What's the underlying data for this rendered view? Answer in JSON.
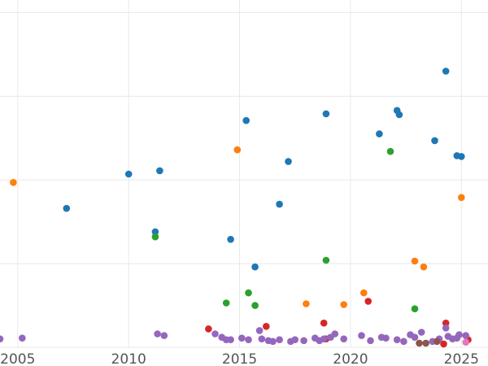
{
  "chart_data": {
    "type": "scatter",
    "title": "",
    "xlabel": "",
    "ylabel": "",
    "grid": true,
    "legend": "none",
    "xlim": [
      2004.2,
      2026.2
    ],
    "ylim": [
      0,
      4.15
    ],
    "xticks": [
      2005,
      2010,
      2015,
      2020,
      2025
    ],
    "xtick_labels": [
      "2005",
      "2010",
      "2015",
      "2020",
      "2025"
    ],
    "yticks": [
      0,
      1,
      2,
      3,
      4
    ],
    "ytick_labels": [],
    "series": [
      {
        "color": "#1f77b4",
        "points": [
          [
            2007.2,
            1.66
          ],
          [
            2010.0,
            2.07
          ],
          [
            2011.2,
            1.38
          ],
          [
            2011.4,
            2.11
          ],
          [
            2014.6,
            1.29
          ],
          [
            2015.3,
            2.71
          ],
          [
            2015.7,
            0.96
          ],
          [
            2016.8,
            1.71
          ],
          [
            2017.2,
            2.22
          ],
          [
            2018.9,
            2.79
          ],
          [
            2021.3,
            2.55
          ],
          [
            2022.1,
            2.83
          ],
          [
            2022.2,
            2.78
          ],
          [
            2023.8,
            2.47
          ],
          [
            2024.3,
            3.3
          ],
          [
            2024.8,
            2.29
          ],
          [
            2025.0,
            2.28
          ]
        ]
      },
      {
        "color": "#ff7f0e",
        "points": [
          [
            2004.8,
            1.97
          ],
          [
            2014.9,
            2.36
          ],
          [
            2018.0,
            0.52
          ],
          [
            2019.7,
            0.51
          ],
          [
            2020.6,
            0.65
          ],
          [
            2022.9,
            1.03
          ],
          [
            2023.3,
            0.96
          ],
          [
            2025.0,
            1.79
          ]
        ]
      },
      {
        "color": "#2ca02c",
        "points": [
          [
            2011.2,
            1.32
          ],
          [
            2014.4,
            0.53
          ],
          [
            2015.4,
            0.65
          ],
          [
            2015.7,
            0.5
          ],
          [
            2018.9,
            1.04
          ],
          [
            2021.8,
            2.34
          ],
          [
            2022.9,
            0.46
          ]
        ]
      },
      {
        "color": "#d62728",
        "points": [
          [
            2013.6,
            0.22
          ],
          [
            2016.2,
            0.25
          ],
          [
            2018.8,
            0.29
          ],
          [
            2018.9,
            0.1
          ],
          [
            2020.8,
            0.55
          ],
          [
            2024.3,
            0.29
          ],
          [
            2024.2,
            0.04
          ],
          [
            2025.3,
            0.09
          ]
        ]
      },
      {
        "color": "#9467bd",
        "points": [
          [
            2004.2,
            0.1
          ],
          [
            2005.2,
            0.11
          ],
          [
            2011.3,
            0.16
          ],
          [
            2011.6,
            0.14
          ],
          [
            2013.9,
            0.16
          ],
          [
            2014.2,
            0.12
          ],
          [
            2014.4,
            0.09
          ],
          [
            2014.6,
            0.09
          ],
          [
            2015.1,
            0.11
          ],
          [
            2015.4,
            0.09
          ],
          [
            2015.9,
            0.2
          ],
          [
            2016.0,
            0.1
          ],
          [
            2016.3,
            0.08
          ],
          [
            2016.5,
            0.07
          ],
          [
            2016.8,
            0.09
          ],
          [
            2017.3,
            0.07
          ],
          [
            2017.5,
            0.09
          ],
          [
            2017.9,
            0.08
          ],
          [
            2018.4,
            0.11
          ],
          [
            2018.6,
            0.08
          ],
          [
            2018.8,
            0.1
          ],
          [
            2019.1,
            0.12
          ],
          [
            2019.3,
            0.16
          ],
          [
            2019.7,
            0.1
          ],
          [
            2020.5,
            0.14
          ],
          [
            2020.9,
            0.08
          ],
          [
            2021.4,
            0.12
          ],
          [
            2021.6,
            0.11
          ],
          [
            2022.1,
            0.09
          ],
          [
            2022.4,
            0.07
          ],
          [
            2022.7,
            0.15
          ],
          [
            2022.9,
            0.12
          ],
          [
            2023.2,
            0.18
          ],
          [
            2023.7,
            0.07
          ],
          [
            2024.0,
            0.1
          ],
          [
            2024.3,
            0.23
          ],
          [
            2024.4,
            0.13
          ],
          [
            2024.6,
            0.1
          ],
          [
            2024.8,
            0.11
          ],
          [
            2024.9,
            0.15
          ],
          [
            2025.2,
            0.14
          ]
        ]
      },
      {
        "color": "#8c564b",
        "points": [
          [
            2023.1,
            0.05
          ],
          [
            2023.4,
            0.05
          ],
          [
            2023.9,
            0.07
          ]
        ]
      },
      {
        "color": "#e377c2",
        "points": [
          [
            2025.2,
            0.06
          ]
        ]
      }
    ]
  }
}
